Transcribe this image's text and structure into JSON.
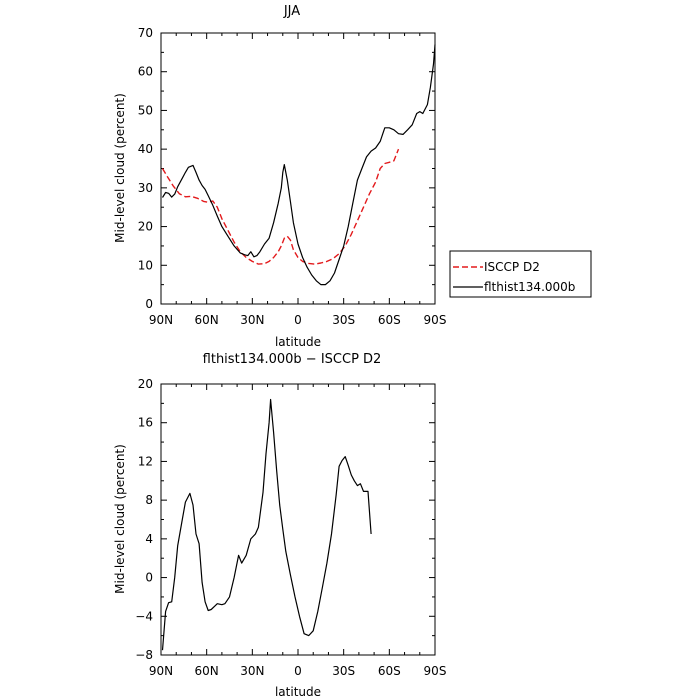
{
  "chart_data": [
    {
      "type": "line",
      "title": "JJA",
      "xlabel": "latitude",
      "ylabel": "Mid-level cloud (percent)",
      "xlim": [
        -90,
        90
      ],
      "ylim": [
        0,
        70
      ],
      "x_ticks": [
        -90,
        -60,
        -30,
        0,
        30,
        60,
        90
      ],
      "x_tick_labels": [
        "90N",
        "60N",
        "30N",
        "0",
        "30S",
        "60S",
        "90S"
      ],
      "y_ticks": [
        0,
        10,
        20,
        30,
        40,
        50,
        60,
        70
      ],
      "y_tick_labels": [
        "0",
        "10",
        "20",
        "30",
        "40",
        "50",
        "60",
        "70"
      ],
      "grid": false,
      "legend_placement": "outside-right",
      "series": [
        {
          "name": "ISCCP D2",
          "color": "#e31a1c",
          "dash": "dashed",
          "points": [
            [
              -89,
              35
            ],
            [
              -86,
              33
            ],
            [
              -82,
              30.5
            ],
            [
              -78,
              28.5
            ],
            [
              -74,
              27.7
            ],
            [
              -70,
              27.8
            ],
            [
              -66,
              27.3
            ],
            [
              -62,
              26.5
            ],
            [
              -59,
              26.3
            ],
            [
              -56,
              26.6
            ],
            [
              -53,
              25
            ],
            [
              -50,
              22
            ],
            [
              -46,
              19
            ],
            [
              -42,
              16
            ],
            [
              -38,
              13.5
            ],
            [
              -34,
              12
            ],
            [
              -30,
              11
            ],
            [
              -26,
              10.3
            ],
            [
              -22,
              10.4
            ],
            [
              -19,
              11
            ],
            [
              -16,
              12
            ],
            [
              -13,
              13.5
            ],
            [
              -11,
              15
            ],
            [
              -9,
              17
            ],
            [
              -7,
              17.5
            ],
            [
              -5,
              16.5
            ],
            [
              -3,
              14
            ],
            [
              0,
              12
            ],
            [
              3,
              11
            ],
            [
              7,
              10.5
            ],
            [
              11,
              10.3
            ],
            [
              15,
              10.6
            ],
            [
              19,
              11
            ],
            [
              23,
              11.7
            ],
            [
              27,
              13
            ],
            [
              31,
              15
            ],
            [
              35,
              18
            ],
            [
              39,
              21.5
            ],
            [
              43,
              25
            ],
            [
              47,
              28.5
            ],
            [
              51,
              31.5
            ],
            [
              54,
              35
            ],
            [
              57,
              36.3
            ],
            [
              60,
              36.6
            ],
            [
              63,
              37
            ],
            [
              66,
              40
            ]
          ]
        },
        {
          "name": "flthist134.000b",
          "color": "#000000",
          "dash": "solid",
          "points": [
            [
              -89,
              27.5
            ],
            [
              -87,
              28.8
            ],
            [
              -85,
              28.6
            ],
            [
              -83,
              27.6
            ],
            [
              -81,
              28.4
            ],
            [
              -79,
              30.3
            ],
            [
              -76,
              32.5
            ],
            [
              -74,
              34
            ],
            [
              -72,
              35.3
            ],
            [
              -69,
              35.8
            ],
            [
              -67,
              34
            ],
            [
              -65,
              32
            ],
            [
              -63,
              30.6
            ],
            [
              -61,
              29.6
            ],
            [
              -59,
              28
            ],
            [
              -56,
              25.5
            ],
            [
              -53,
              22.7
            ],
            [
              -50,
              20
            ],
            [
              -46,
              17.5
            ],
            [
              -42,
              15
            ],
            [
              -38,
              13.2
            ],
            [
              -35,
              12.7
            ],
            [
              -33,
              12.5
            ],
            [
              -31,
              13.5
            ],
            [
              -29,
              12.2
            ],
            [
              -27,
              12.5
            ],
            [
              -25,
              13.5
            ],
            [
              -22,
              15.5
            ],
            [
              -19,
              17
            ],
            [
              -16,
              21
            ],
            [
              -13,
              26
            ],
            [
              -11,
              30
            ],
            [
              -10,
              34
            ],
            [
              -9,
              36
            ],
            [
              -8,
              34
            ],
            [
              -7,
              32
            ],
            [
              -5,
              26.5
            ],
            [
              -3,
              21
            ],
            [
              0,
              15.5
            ],
            [
              3,
              12
            ],
            [
              6,
              9.5
            ],
            [
              9,
              7.5
            ],
            [
              12,
              6
            ],
            [
              15,
              5
            ],
            [
              18,
              5
            ],
            [
              21,
              6
            ],
            [
              24,
              8
            ],
            [
              27,
              11.5
            ],
            [
              30,
              15
            ],
            [
              33,
              20
            ],
            [
              36,
              26
            ],
            [
              39,
              32
            ],
            [
              42,
              35
            ],
            [
              45,
              38
            ],
            [
              48,
              39.5
            ],
            [
              51,
              40.3
            ],
            [
              54,
              42
            ],
            [
              57,
              45.5
            ],
            [
              60,
              45.5
            ],
            [
              63,
              45
            ],
            [
              66,
              44
            ],
            [
              69,
              43.8
            ],
            [
              72,
              45
            ],
            [
              75,
              46.3
            ],
            [
              78,
              49.2
            ],
            [
              80,
              49.7
            ],
            [
              82,
              49.2
            ],
            [
              85,
              51.5
            ],
            [
              87,
              56
            ],
            [
              89,
              62
            ],
            [
              90,
              67
            ]
          ]
        }
      ]
    },
    {
      "type": "line",
      "title": "flthist134.000b − ISCCP D2",
      "xlabel": "latitude",
      "ylabel": "Mid-level cloud (percent)",
      "xlim": [
        -90,
        90
      ],
      "ylim": [
        -8,
        20
      ],
      "x_ticks": [
        -90,
        -60,
        -30,
        0,
        30,
        60,
        90
      ],
      "x_tick_labels": [
        "90N",
        "60N",
        "30N",
        "0",
        "30S",
        "60S",
        "90S"
      ],
      "y_ticks": [
        -8,
        -4,
        0,
        4,
        8,
        12,
        16,
        20
      ],
      "y_tick_labels": [
        "−8",
        "−4",
        "0",
        "4",
        "8",
        "12",
        "16",
        "20"
      ],
      "grid": false,
      "series": [
        {
          "color": "#000000",
          "dash": "solid",
          "points": [
            [
              -89,
              -7.5
            ],
            [
              -87,
              -3.5
            ],
            [
              -85,
              -2.6
            ],
            [
              -83,
              -2.5
            ],
            [
              -81,
              0
            ],
            [
              -79,
              3.3
            ],
            [
              -76,
              6
            ],
            [
              -74,
              7.8
            ],
            [
              -71,
              8.7
            ],
            [
              -69,
              7.5
            ],
            [
              -67,
              4.5
            ],
            [
              -65,
              3.5
            ],
            [
              -63,
              -0.5
            ],
            [
              -61,
              -2.5
            ],
            [
              -59,
              -3.4
            ],
            [
              -57,
              -3.3
            ],
            [
              -55,
              -3
            ],
            [
              -53,
              -2.7
            ],
            [
              -50,
              -2.8
            ],
            [
              -48,
              -2.7
            ],
            [
              -45,
              -2
            ],
            [
              -42,
              0
            ],
            [
              -39,
              2.3
            ],
            [
              -37,
              1.5
            ],
            [
              -34,
              2.3
            ],
            [
              -31,
              4
            ],
            [
              -28,
              4.5
            ],
            [
              -26,
              5.2
            ],
            [
              -23,
              8.8
            ],
            [
              -21,
              12.8
            ],
            [
              -19,
              16
            ],
            [
              -18,
              18.4
            ],
            [
              -16,
              15
            ],
            [
              -14,
              11
            ],
            [
              -12,
              7.5
            ],
            [
              -10,
              5
            ],
            [
              -8,
              2.7
            ],
            [
              -5,
              0.3
            ],
            [
              -2,
              -2
            ],
            [
              1,
              -4
            ],
            [
              4,
              -5.8
            ],
            [
              7,
              -6
            ],
            [
              10,
              -5.5
            ],
            [
              13,
              -3.5
            ],
            [
              16,
              -1
            ],
            [
              19,
              1.5
            ],
            [
              22,
              4.5
            ],
            [
              25,
              8.5
            ],
            [
              27,
              11.5
            ],
            [
              29,
              12.1
            ],
            [
              31,
              12.5
            ],
            [
              33,
              11.6
            ],
            [
              35,
              10.6
            ],
            [
              37,
              10
            ],
            [
              39,
              9.5
            ],
            [
              41,
              9.7
            ],
            [
              43,
              8.9
            ],
            [
              46,
              8.9
            ],
            [
              48,
              4.5
            ]
          ]
        }
      ]
    }
  ]
}
